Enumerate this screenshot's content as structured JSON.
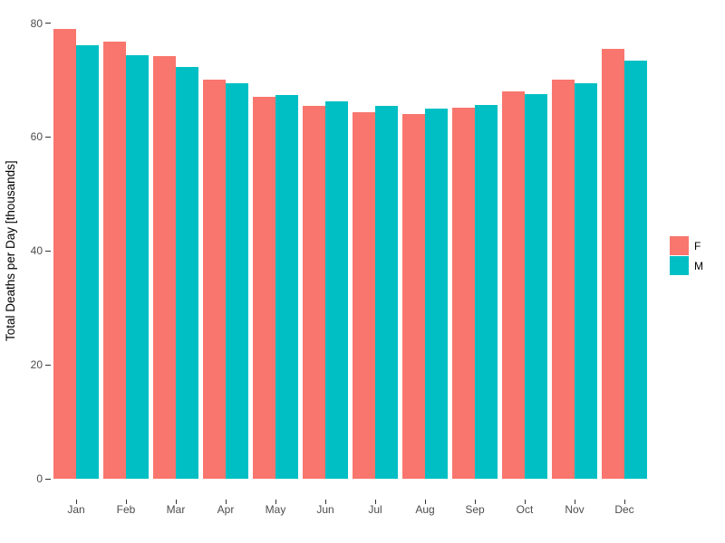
{
  "chart_data": {
    "type": "bar",
    "title": "",
    "xlabel": "",
    "ylabel": "Total Deaths per Day [thousands]",
    "categories": [
      "Jan",
      "Feb",
      "Mar",
      "Apr",
      "May",
      "Jun",
      "Jul",
      "Aug",
      "Sep",
      "Oct",
      "Nov",
      "Dec"
    ],
    "series": [
      {
        "name": "F",
        "color": "#F8766D",
        "values": [
          78.9,
          76.7,
          74.2,
          70.0,
          67.1,
          65.4,
          64.4,
          64.0,
          65.2,
          68.0,
          70.0,
          75.4
        ]
      },
      {
        "name": "M",
        "color": "#00BFC4",
        "values": [
          76.1,
          74.4,
          72.3,
          69.4,
          67.4,
          66.2,
          65.4,
          65.0,
          65.7,
          67.5,
          69.5,
          73.4
        ]
      }
    ],
    "ylim": [
      0,
      80
    ],
    "yticks": [
      0,
      20,
      40,
      60,
      80
    ],
    "grid": false,
    "legend_position": "right",
    "background_color": "#FFFFFF",
    "tick_color": "#333333",
    "axis_text_color": "#4D4D4D"
  }
}
